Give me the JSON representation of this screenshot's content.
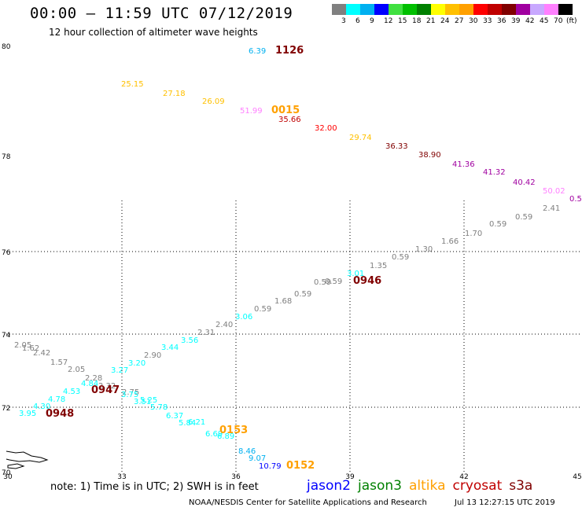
{
  "title": "00:00 – 11:59 UTC 07/12/2019",
  "subtitle": "12 hour collection of altimeter wave heights",
  "colorbar": {
    "unit": "(ft)",
    "ticks": [
      "3",
      "6",
      "9",
      "12",
      "15",
      "18",
      "21",
      "24",
      "27",
      "30",
      "33",
      "36",
      "39",
      "42",
      "45",
      "70"
    ],
    "colors": [
      "#808080",
      "#00ffff",
      "#00b0f0",
      "#0000ff",
      "#40e040",
      "#00c000",
      "#008000",
      "#ffff00",
      "#ffc000",
      "#ffa000",
      "#ff0000",
      "#c00000",
      "#800000",
      "#a000a0",
      "#c8a8ff",
      "#ff80ff",
      "#000000"
    ]
  },
  "axes": {
    "lat_labels": [
      "80",
      "78",
      "76",
      "74",
      "72",
      "70"
    ],
    "lon_labels": [
      "30",
      "33",
      "36",
      "39",
      "42",
      "45"
    ]
  },
  "tracks": [
    {
      "satellite": "cryosat",
      "labels": [
        {
          "text": "6.39",
          "value": 6.39,
          "color": "#00b0f0"
        },
        {
          "text": "1126",
          "color": "#800000",
          "time": true
        },
        {
          "text": "25.15",
          "value": 25.15,
          "color": "#ffc000"
        },
        {
          "text": "27.18",
          "value": 27.18,
          "color": "#ffc000"
        },
        {
          "text": "26.09",
          "value": 26.09,
          "color": "#ffc000"
        },
        {
          "text": "51.99",
          "value": 51.99,
          "color": "#ff80ff"
        },
        {
          "text": "0015",
          "color": "#ffa000",
          "time": true
        },
        {
          "text": "35.66",
          "value": 35.66,
          "color": "#c00000"
        },
        {
          "text": "32.00",
          "value": 32.0,
          "color": "#ff0000"
        },
        {
          "text": "29.74",
          "value": 29.74,
          "color": "#ffc000"
        },
        {
          "text": "36.33",
          "value": 36.33,
          "color": "#800000"
        },
        {
          "text": "38.90",
          "value": 38.9,
          "color": "#800000"
        },
        {
          "text": "41.36",
          "value": 41.36,
          "color": "#a000a0"
        },
        {
          "text": "41.32",
          "value": 41.32,
          "color": "#a000a0"
        },
        {
          "text": "40.42",
          "value": 40.42,
          "color": "#a000a0"
        },
        {
          "text": "50.02",
          "value": 50.02,
          "color": "#ff80ff"
        },
        {
          "text": "0.5",
          "value": 0.5,
          "color": "#a000a0"
        }
      ]
    },
    {
      "satellite": "s3a",
      "labels": [
        {
          "text": "2.41",
          "value": 2.41,
          "color": "#808080"
        },
        {
          "text": "0.59",
          "value": 0.59,
          "color": "#808080"
        },
        {
          "text": "1.70",
          "value": 1.7,
          "color": "#808080"
        },
        {
          "text": "0.59",
          "value": 0.59,
          "color": "#808080"
        },
        {
          "text": "1.66",
          "value": 1.66,
          "color": "#808080"
        },
        {
          "text": "1.30",
          "value": 1.3,
          "color": "#808080"
        },
        {
          "text": "0.59",
          "value": 0.59,
          "color": "#808080"
        },
        {
          "text": "1.35",
          "value": 1.35,
          "color": "#808080"
        },
        {
          "text": "3.01",
          "value": 3.01,
          "color": "#00ffff"
        },
        {
          "text": "0946",
          "color": "#800000",
          "time": true
        },
        {
          "text": "0.59",
          "value": 0.59,
          "color": "#808080"
        },
        {
          "text": "0.59",
          "value": 0.59,
          "color": "#808080"
        },
        {
          "text": "0.59",
          "value": 0.59,
          "color": "#808080"
        },
        {
          "text": "1.68",
          "value": 1.68,
          "color": "#808080"
        },
        {
          "text": "0.59",
          "value": 0.59,
          "color": "#808080"
        },
        {
          "text": "3.06",
          "value": 3.06,
          "color": "#00ffff"
        },
        {
          "text": "2.40",
          "value": 2.4,
          "color": "#808080"
        },
        {
          "text": "2.31",
          "value": 2.31,
          "color": "#808080"
        },
        {
          "text": "3.56",
          "value": 3.56,
          "color": "#00ffff"
        },
        {
          "text": "3.44",
          "value": 3.44,
          "color": "#00ffff"
        },
        {
          "text": "2.90",
          "value": 2.9,
          "color": "#808080"
        },
        {
          "text": "3.20",
          "value": 3.2,
          "color": "#00ffff"
        },
        {
          "text": "3.27",
          "value": 3.27,
          "color": "#00ffff"
        },
        {
          "text": "2.05",
          "value": 2.05,
          "color": "#808080"
        },
        {
          "text": "1.62",
          "value": 1.62,
          "color": "#808080"
        },
        {
          "text": "2.42",
          "value": 2.42,
          "color": "#808080"
        },
        {
          "text": "1.57",
          "value": 1.57,
          "color": "#808080"
        },
        {
          "text": "2.05",
          "value": 2.05,
          "color": "#808080"
        },
        {
          "text": "2.28",
          "value": 2.28,
          "color": "#808080"
        },
        {
          "text": "2.32",
          "value": 2.32,
          "color": "#808080"
        },
        {
          "text": "2.75",
          "value": 2.75,
          "color": "#808080"
        },
        {
          "text": "0947",
          "color": "#800000",
          "time": true
        },
        {
          "text": "4.84",
          "value": 4.84,
          "color": "#00ffff"
        },
        {
          "text": "4.53",
          "value": 4.53,
          "color": "#00ffff"
        },
        {
          "text": "4.78",
          "value": 4.78,
          "color": "#00ffff"
        },
        {
          "text": "4.30",
          "value": 4.3,
          "color": "#00ffff"
        },
        {
          "text": "3.95",
          "value": 3.95,
          "color": "#00ffff"
        },
        {
          "text": "0948",
          "color": "#800000",
          "time": true
        }
      ]
    },
    {
      "satellite": "altika",
      "labels": [
        {
          "text": "3.75",
          "value": 3.75,
          "color": "#00ffff"
        },
        {
          "text": "3.51",
          "value": 3.51,
          "color": "#00ffff"
        },
        {
          "text": "5.25",
          "value": 5.25,
          "color": "#00ffff"
        },
        {
          "text": "5.78",
          "value": 5.78,
          "color": "#00ffff"
        },
        {
          "text": "6.37",
          "value": 6.37,
          "color": "#00ffff"
        },
        {
          "text": "5.84",
          "value": 5.84,
          "color": "#00ffff"
        },
        {
          "text": "6.21",
          "value": 6.21,
          "color": "#00ffff"
        },
        {
          "text": "6.69",
          "value": 6.69,
          "color": "#00ffff"
        },
        {
          "text": "6.89",
          "value": 6.89,
          "color": "#00ffff"
        },
        {
          "text": "0153",
          "color": "#ffa000",
          "time": true
        },
        {
          "text": "8.46",
          "value": 8.46,
          "color": "#00b0f0"
        },
        {
          "text": "9.07",
          "value": 9.07,
          "color": "#00b0f0"
        },
        {
          "text": "10.79",
          "value": 10.79,
          "color": "#0000ff"
        },
        {
          "text": "0152",
          "color": "#ffa000",
          "time": true
        }
      ]
    }
  ],
  "note": "note: 1) Time is in UTC; 2) SWH is in feet",
  "legend": [
    {
      "name": "jason2",
      "color": "#0000ff"
    },
    {
      "name": "jason3",
      "color": "#008000"
    },
    {
      "name": "altika",
      "color": "#ffa000"
    },
    {
      "name": "cryosat",
      "color": "#c00000"
    },
    {
      "name": "s3a",
      "color": "#800000"
    }
  ],
  "credit": "NOAA/NESDIS Center for Satellite Applications and Research",
  "credit_time": "Jul 13 12:27:15 UTC 2019"
}
